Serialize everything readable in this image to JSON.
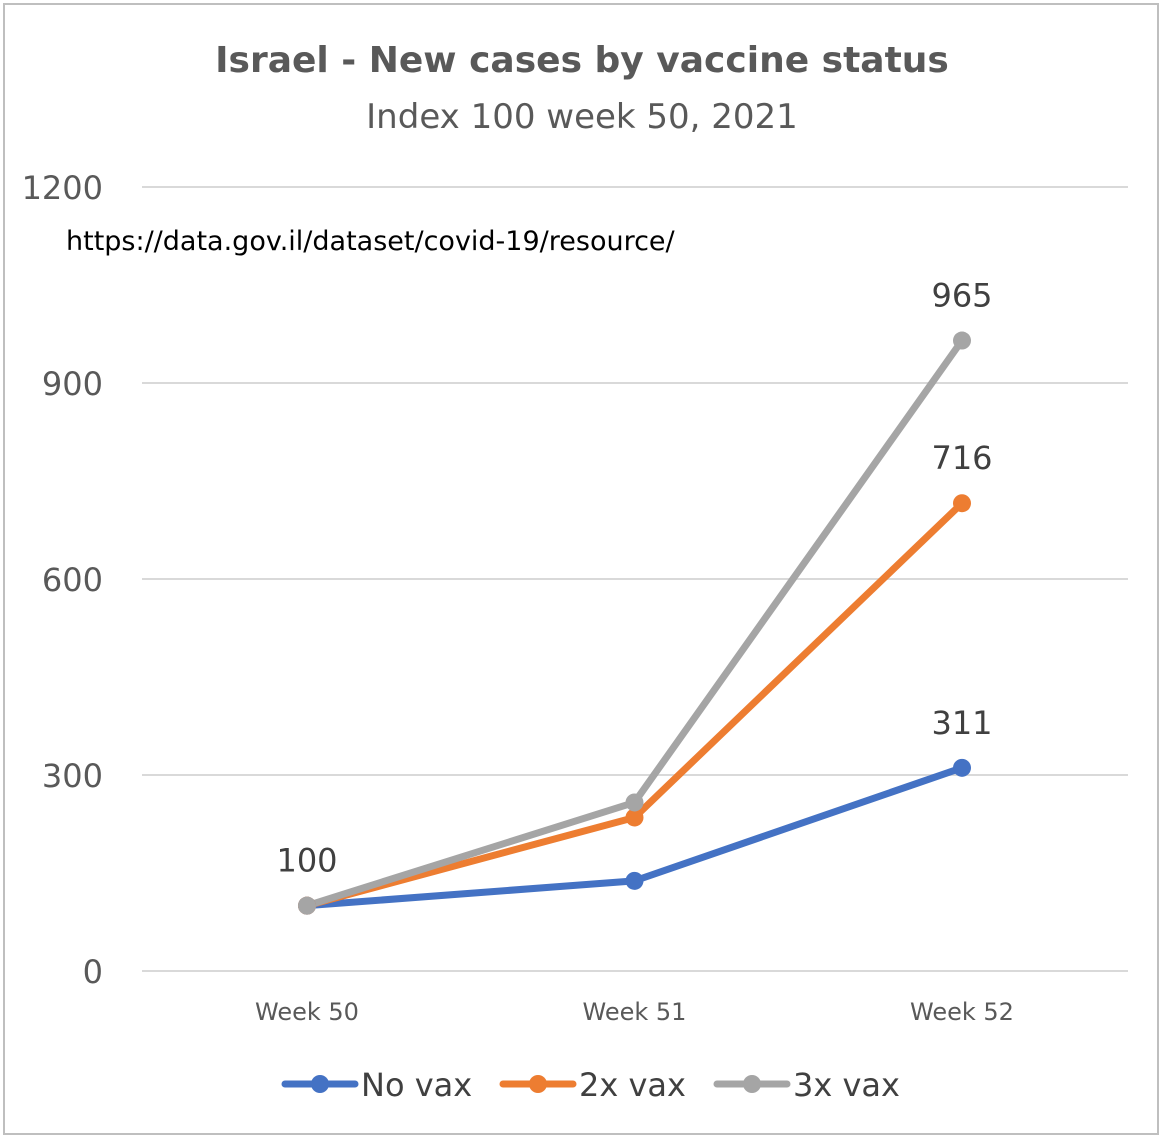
{
  "chart_data": {
    "type": "line",
    "title": "Israel - New cases by vaccine status",
    "subtitle": "Index 100 week 50, 2021",
    "annotation": "https://data.gov.il/dataset/covid-19/resource/",
    "categories": [
      "Week 50",
      "Week 51",
      "Week 52"
    ],
    "ylim": [
      0,
      1200
    ],
    "yticks": [
      0,
      300,
      600,
      900,
      1200
    ],
    "grid": true,
    "legend_position": "bottom",
    "series": [
      {
        "name": "No vax",
        "color": "#4472c4",
        "values": [
          100,
          138,
          311
        ],
        "labels": [
          "",
          "",
          "311"
        ]
      },
      {
        "name": "2x vax",
        "color": "#ed7d31",
        "values": [
          100,
          235,
          716
        ],
        "labels": [
          "",
          "",
          "716"
        ]
      },
      {
        "name": "3x vax",
        "color": "#a5a5a5",
        "values": [
          100,
          258,
          965
        ],
        "labels": [
          "100",
          "",
          "965"
        ]
      }
    ]
  }
}
